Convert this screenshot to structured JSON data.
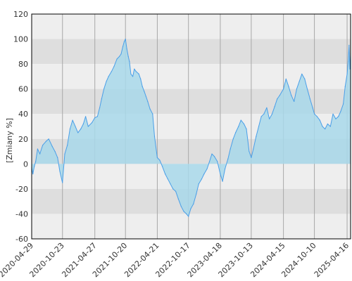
{
  "chart_data": {
    "type": "area",
    "title": "",
    "xlabel": "",
    "ylabel": "[Zmiany %]",
    "x_range": [
      "2020-04-29",
      "2025-05-06"
    ],
    "ylim": [
      -60,
      120
    ],
    "y_ticks": [
      120,
      100,
      80,
      60,
      40,
      20,
      0,
      -20,
      -40,
      -60
    ],
    "x_ticks": [
      "2020-04-29",
      "2020-10-23",
      "2021-04-27",
      "2021-10-20",
      "2022-04-21",
      "2022-10-17",
      "2023-04-18",
      "2023-10-13",
      "2024-04-15",
      "2024-10-10",
      "2025-04-16"
    ],
    "grid": true,
    "legend": "none",
    "colors": {
      "line": "#4a9fe8",
      "fill": "#a8d8ea",
      "band_light": "#eeeeee",
      "band_dark": "#dedede",
      "vgrid": "#a8a8a8",
      "frame": "#000000"
    },
    "series": [
      {
        "x": [
          "2020-04-29",
          "2020-05-06",
          "2020-05-14",
          "2020-05-22",
          "2020-06-02",
          "2020-06-15",
          "2020-07-01",
          "2020-07-20",
          "2020-08-05",
          "2020-08-25",
          "2020-09-10",
          "2020-09-25",
          "2020-10-08",
          "2020-10-23",
          "2020-11-05",
          "2020-11-20",
          "2020-12-05",
          "2020-12-20",
          "2021-01-05",
          "2021-01-20",
          "2021-02-05",
          "2021-02-20",
          "2021-03-05",
          "2021-03-20",
          "2021-04-10",
          "2021-04-27",
          "2021-05-12",
          "2021-05-25",
          "2021-06-05",
          "2021-06-18",
          "2021-07-02",
          "2021-07-15",
          "2021-08-01",
          "2021-08-15",
          "2021-09-01",
          "2021-09-15",
          "2021-09-25",
          "2021-10-05",
          "2021-10-13",
          "2021-10-20",
          "2021-10-28",
          "2021-11-05",
          "2021-11-12",
          "2021-11-20",
          "2021-12-01",
          "2021-12-10",
          "2021-12-20",
          "2022-01-05",
          "2022-01-15",
          "2022-01-25",
          "2022-02-05",
          "2022-02-15",
          "2022-02-25",
          "2022-03-10",
          "2022-03-25",
          "2022-04-05",
          "2022-04-21",
          "2022-05-05",
          "2022-05-20",
          "2022-06-05",
          "2022-06-20",
          "2022-07-05",
          "2022-07-20",
          "2022-08-05",
          "2022-08-20",
          "2022-09-05",
          "2022-09-20",
          "2022-10-05",
          "2022-10-17",
          "2022-10-30",
          "2022-11-15",
          "2022-12-01",
          "2022-12-15",
          "2023-01-01",
          "2023-01-15",
          "2023-02-01",
          "2023-02-15",
          "2023-03-01",
          "2023-03-15",
          "2023-04-01",
          "2023-04-18",
          "2023-05-01",
          "2023-05-15",
          "2023-06-01",
          "2023-06-15",
          "2023-07-01",
          "2023-07-15",
          "2023-08-01",
          "2023-08-15",
          "2023-09-01",
          "2023-09-15",
          "2023-10-01",
          "2023-10-13",
          "2023-10-25",
          "2023-11-10",
          "2023-11-25",
          "2023-12-10",
          "2023-12-25",
          "2024-01-10",
          "2024-01-25",
          "2024-02-10",
          "2024-02-25",
          "2024-03-10",
          "2024-03-25",
          "2024-04-15",
          "2024-04-30",
          "2024-05-15",
          "2024-05-30",
          "2024-06-15",
          "2024-06-30",
          "2024-07-15",
          "2024-07-30",
          "2024-08-15",
          "2024-08-30",
          "2024-09-15",
          "2024-09-30",
          "2024-10-10",
          "2024-10-25",
          "2024-11-10",
          "2024-11-25",
          "2024-12-10",
          "2024-12-25",
          "2025-01-10",
          "2025-01-25",
          "2025-02-10",
          "2025-02-25",
          "2025-03-10",
          "2025-03-25",
          "2025-04-05",
          "2025-04-16",
          "2025-04-22",
          "2025-04-27",
          "2025-05-02",
          "2025-05-06"
        ],
        "values": [
          -3,
          -8,
          -2,
          2,
          12,
          8,
          15,
          18,
          20,
          14,
          10,
          5,
          -6,
          -15,
          8,
          15,
          28,
          35,
          30,
          25,
          28,
          32,
          38,
          30,
          33,
          37,
          38,
          45,
          52,
          60,
          66,
          70,
          74,
          78,
          84,
          86,
          88,
          94,
          98,
          100,
          92,
          86,
          82,
          72,
          70,
          76,
          74,
          72,
          68,
          62,
          58,
          54,
          50,
          44,
          40,
          22,
          5,
          3,
          -2,
          -8,
          -12,
          -16,
          -20,
          -22,
          -28,
          -34,
          -38,
          -40,
          -42,
          -36,
          -32,
          -24,
          -16,
          -12,
          -8,
          -4,
          2,
          8,
          6,
          2,
          -8,
          -14,
          -4,
          4,
          12,
          20,
          25,
          30,
          35,
          32,
          28,
          10,
          5,
          12,
          22,
          30,
          38,
          40,
          45,
          36,
          40,
          46,
          52,
          55,
          60,
          68,
          62,
          55,
          50,
          60,
          66,
          72,
          68,
          60,
          52,
          45,
          40,
          38,
          35,
          30,
          28,
          32,
          30,
          40,
          36,
          38,
          42,
          48,
          62,
          72,
          82,
          95,
          76,
          88
        ]
      }
    ]
  }
}
